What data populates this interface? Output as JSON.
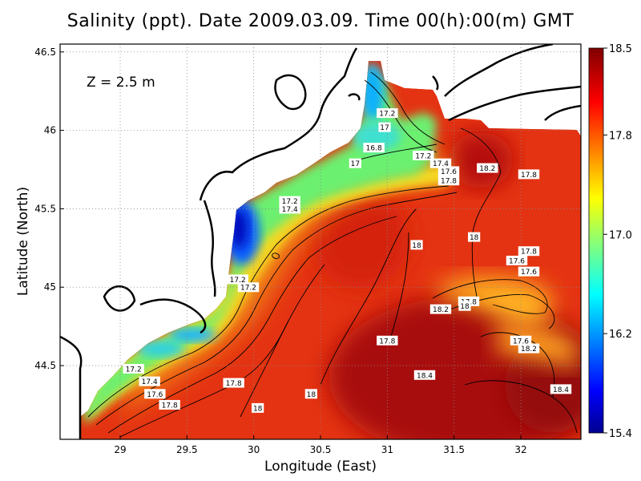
{
  "title": "Salinity (ppt). Date 2009.03.09. Time 00(h):00(m) GMT",
  "depth_label": "Z = 2.5 m",
  "chart_data": {
    "type": "heatmap",
    "xlabel": "Longitude (East)",
    "ylabel": "Latitude (North)",
    "xlim": [
      28.55,
      32.45
    ],
    "ylim": [
      44.03,
      46.55
    ],
    "x_ticks": [
      "29",
      "29.5",
      "30",
      "30.5",
      "31",
      "31.5",
      "32"
    ],
    "x_tick_values": [
      29,
      29.5,
      30,
      30.5,
      31,
      31.5,
      32
    ],
    "y_ticks": [
      "44.5",
      "45",
      "45.5",
      "46",
      "46.5"
    ],
    "y_tick_values": [
      44.5,
      45,
      45.5,
      46,
      46.5
    ],
    "grid": "dotted",
    "colorbar": {
      "min": 15.4,
      "max": 18.5,
      "tick_labels": [
        "18.5",
        "17.8",
        "17.0",
        "16.2",
        "15.4"
      ],
      "tick_values": [
        18.5,
        17.8,
        17.0,
        16.2,
        15.4
      ],
      "colormap": "jet"
    },
    "contour_labels": [
      {
        "text": "17.2",
        "lon": 31.0,
        "lat": 46.11
      },
      {
        "text": "17",
        "lon": 30.98,
        "lat": 46.02
      },
      {
        "text": "16.8",
        "lon": 30.9,
        "lat": 45.89
      },
      {
        "text": "17.2",
        "lon": 31.27,
        "lat": 45.84
      },
      {
        "text": "17.4",
        "lon": 31.4,
        "lat": 45.79
      },
      {
        "text": "17",
        "lon": 30.76,
        "lat": 45.79
      },
      {
        "text": "17.6",
        "lon": 31.46,
        "lat": 45.74
      },
      {
        "text": "18.2",
        "lon": 31.75,
        "lat": 45.76
      },
      {
        "text": "17.8",
        "lon": 31.46,
        "lat": 45.68
      },
      {
        "text": "17.8",
        "lon": 32.06,
        "lat": 45.72
      },
      {
        "text": "17.2",
        "lon": 30.27,
        "lat": 45.55
      },
      {
        "text": "17.4",
        "lon": 30.27,
        "lat": 45.5
      },
      {
        "text": "18",
        "lon": 31.65,
        "lat": 45.32
      },
      {
        "text": "18",
        "lon": 31.22,
        "lat": 45.27
      },
      {
        "text": "17.8",
        "lon": 32.06,
        "lat": 45.23
      },
      {
        "text": "17.6",
        "lon": 31.97,
        "lat": 45.17
      },
      {
        "text": "17.6",
        "lon": 32.06,
        "lat": 45.1
      },
      {
        "text": "17.2",
        "lon": 29.88,
        "lat": 45.05
      },
      {
        "text": "17.2",
        "lon": 29.96,
        "lat": 45.0
      },
      {
        "text": "17.8",
        "lon": 31.61,
        "lat": 44.91
      },
      {
        "text": "18",
        "lon": 31.58,
        "lat": 44.88
      },
      {
        "text": "18.2",
        "lon": 31.4,
        "lat": 44.86
      },
      {
        "text": "17.8",
        "lon": 31.0,
        "lat": 44.66
      },
      {
        "text": "17.6",
        "lon": 32.0,
        "lat": 44.66
      },
      {
        "text": "18.2",
        "lon": 32.06,
        "lat": 44.61
      },
      {
        "text": "17.2",
        "lon": 29.1,
        "lat": 44.48
      },
      {
        "text": "18.4",
        "lon": 31.28,
        "lat": 44.44
      },
      {
        "text": "17.4",
        "lon": 29.22,
        "lat": 44.4
      },
      {
        "text": "17.8",
        "lon": 29.85,
        "lat": 44.39
      },
      {
        "text": "18.4",
        "lon": 32.3,
        "lat": 44.35
      },
      {
        "text": "17.6",
        "lon": 29.26,
        "lat": 44.32
      },
      {
        "text": "18",
        "lon": 30.43,
        "lat": 44.32
      },
      {
        "text": "17.8",
        "lon": 29.37,
        "lat": 44.25
      },
      {
        "text": "18",
        "lon": 30.03,
        "lat": 44.23
      }
    ]
  }
}
